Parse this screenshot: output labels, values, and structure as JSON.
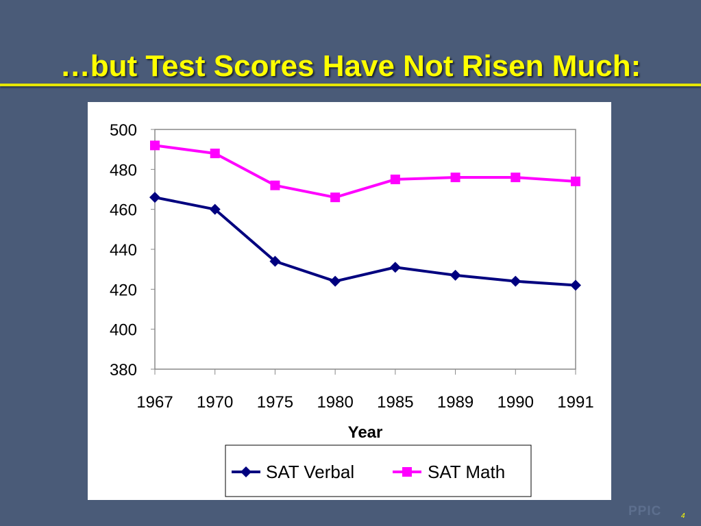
{
  "slide": {
    "title": "…but Test Scores Have Not Risen Much:",
    "logo": "PPIC",
    "page_number": "4"
  },
  "colors": {
    "background": "#4a5b78",
    "title": "#ffff00",
    "verbal": "#00007f",
    "math": "#ff00ff"
  },
  "chart_data": {
    "type": "line",
    "title": "",
    "xlabel": "Year",
    "ylabel": "",
    "categories": [
      "1967",
      "1970",
      "1975",
      "1980",
      "1985",
      "1989",
      "1990",
      "1991"
    ],
    "ylim": [
      380,
      500
    ],
    "yticks": [
      380,
      400,
      420,
      440,
      460,
      480,
      500
    ],
    "grid": false,
    "legend_position": "bottom",
    "series": [
      {
        "name": "SAT Verbal",
        "marker": "diamond",
        "color": "#00007f",
        "values": [
          466,
          460,
          434,
          424,
          431,
          427,
          424,
          422
        ]
      },
      {
        "name": "SAT Math",
        "marker": "square",
        "color": "#ff00ff",
        "values": [
          492,
          488,
          472,
          466,
          475,
          476,
          476,
          474
        ]
      }
    ]
  }
}
